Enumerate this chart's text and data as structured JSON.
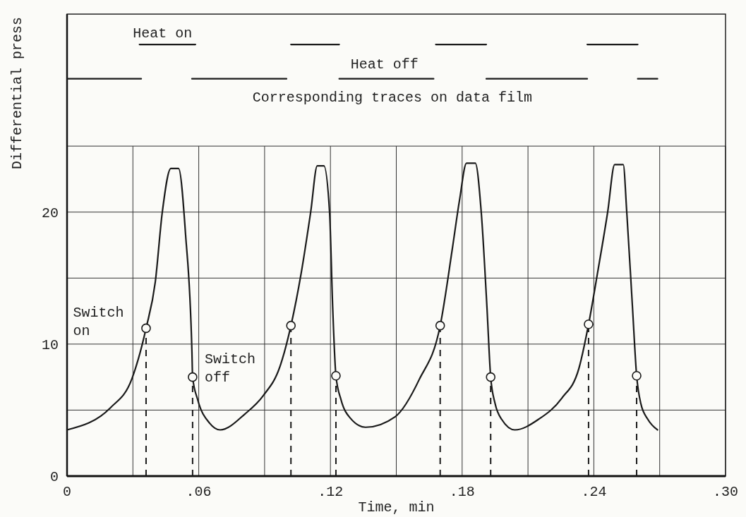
{
  "chart_data": {
    "type": "line",
    "xlabel": "Time, min",
    "ylabel": "Differential press",
    "xlim": [
      0,
      0.3
    ],
    "ylim": [
      0,
      35
    ],
    "xticks": [
      {
        "value": 0,
        "label": "0"
      },
      {
        "value": 0.03,
        "label": null
      },
      {
        "value": 0.06,
        "label": ".06"
      },
      {
        "value": 0.09,
        "label": null
      },
      {
        "value": 0.12,
        "label": ".12"
      },
      {
        "value": 0.15,
        "label": null
      },
      {
        "value": 0.18,
        "label": ".18"
      },
      {
        "value": 0.21,
        "label": null
      },
      {
        "value": 0.24,
        "label": ".24"
      },
      {
        "value": 0.27,
        "label": null
      },
      {
        "value": 0.3,
        "label": ".30"
      }
    ],
    "yticks": [
      0,
      {
        "value": 5,
        "label": null
      },
      10,
      {
        "value": 15,
        "label": null
      },
      20,
      {
        "value": 25,
        "label": null
      }
    ],
    "grid": true,
    "series": [
      {
        "color": "#1a1a1a",
        "x": [
          0,
          0.0199,
          0.0296,
          0.036,
          0.0402,
          0.0434,
          0.0473,
          0.0508,
          0.054,
          0.0569,
          0.0572,
          0.0595,
          0.065,
          0.0698,
          0.081,
          0.0894,
          0.097,
          0.102,
          0.1067,
          0.111,
          0.114,
          0.117,
          0.1196,
          0.121,
          0.1225,
          0.1248,
          0.129,
          0.136,
          0.1495,
          0.1604,
          0.17,
          0.1756,
          0.1788,
          0.182,
          0.186,
          0.1887,
          0.1913,
          0.193,
          0.195,
          0.198,
          0.204,
          0.2148,
          0.2254,
          0.2331,
          0.2376,
          0.2418,
          0.2463,
          0.2495,
          0.2534,
          0.255,
          0.2576,
          0.2595,
          0.2614,
          0.2646,
          0.269
        ],
        "values": [
          3.5,
          5.2,
          7.4,
          11.2,
          14.7,
          20.0,
          23.3,
          23.3,
          18.3,
          9.4,
          7.5,
          5.8,
          4.0,
          3.5,
          4.7,
          6.1,
          8.3,
          11.4,
          15.4,
          20.0,
          23.5,
          23.5,
          20.0,
          12.9,
          7.6,
          5.8,
          4.4,
          3.7,
          4.5,
          7.3,
          11.4,
          17.3,
          20.9,
          23.7,
          23.7,
          20.0,
          12.8,
          7.5,
          5.5,
          4.3,
          3.5,
          4.3,
          5.9,
          8.1,
          11.5,
          15.5,
          20.0,
          23.6,
          23.6,
          20.0,
          12.8,
          7.6,
          5.5,
          4.3,
          3.5
        ]
      },
      {
        "type": "scatter",
        "color": "#1a1a1a",
        "marker": "circle",
        "x": [
          0.036,
          0.0572,
          0.102,
          0.1225,
          0.17,
          0.193,
          0.2376,
          0.2595
        ],
        "values": [
          11.2,
          7.5,
          11.4,
          7.6,
          11.4,
          7.5,
          11.5,
          7.6
        ]
      },
      {
        "type": "line",
        "color": "#1a1a1a",
        "x": [
          0.033,
          0.0585,
          0.08,
          0.102,
          0.124,
          0.146,
          0.168,
          0.191,
          0.214,
          0.237,
          0.26
        ],
        "values": [
          32.7,
          32.7,
          null,
          32.7,
          32.7,
          null,
          32.7,
          32.7,
          null,
          32.7,
          32.7
        ]
      },
      {
        "type": "line",
        "color": "#1a1a1a",
        "x": [
          0,
          0.0338,
          0.045,
          0.0569,
          0.1,
          0.112,
          0.124,
          0.167,
          0.179,
          0.191,
          0.237,
          0.248,
          0.26,
          0.269
        ],
        "values": [
          30.1,
          30.1,
          null,
          30.1,
          30.1,
          null,
          30.1,
          30.1,
          null,
          30.1,
          30.1,
          null,
          30.1,
          30.1
        ]
      }
    ],
    "ref_lines": [
      {
        "axis": "x",
        "value": 0.036,
        "line_style": "dashed"
      },
      {
        "axis": "x",
        "value": 0.0572,
        "line_style": "dashed"
      },
      {
        "axis": "x",
        "value": 0.102,
        "line_style": "dashed"
      },
      {
        "axis": "x",
        "value": 0.1225,
        "line_style": "dashed"
      },
      {
        "axis": "x",
        "value": 0.17,
        "line_style": "dashed"
      },
      {
        "axis": "x",
        "value": 0.193,
        "line_style": "dashed"
      },
      {
        "axis": "x",
        "value": 0.2376,
        "line_style": "dashed"
      },
      {
        "axis": "x",
        "value": 0.2595,
        "line_style": "dashed"
      }
    ],
    "annotations": [
      "Heat on",
      "Heat off",
      "Corresponding traces on data film",
      "Switch\non",
      "Switch\noff"
    ]
  }
}
